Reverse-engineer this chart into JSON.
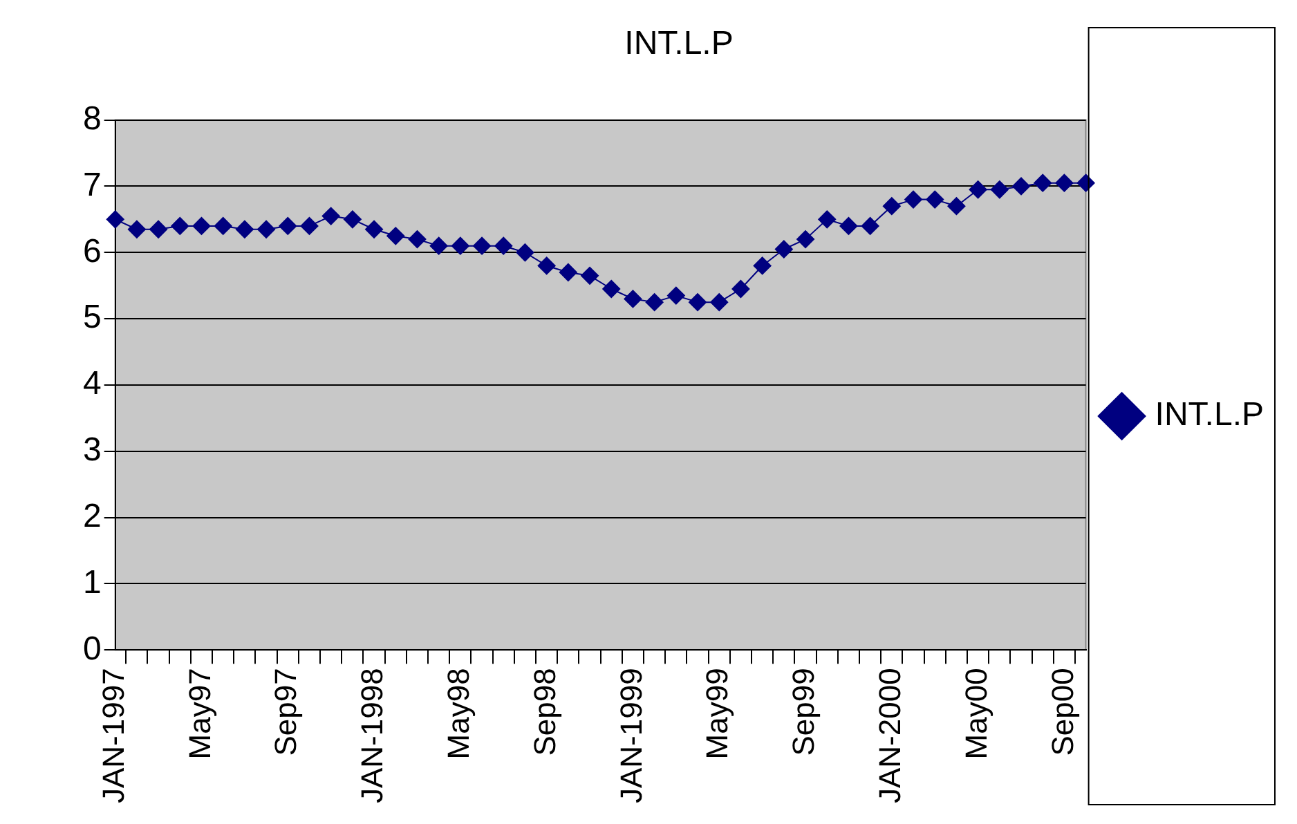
{
  "chart_data": {
    "type": "line",
    "title": "INT.L.P",
    "categories": [
      "JAN-1997",
      null,
      null,
      null,
      "May97",
      null,
      null,
      null,
      "Sep97",
      null,
      null,
      null,
      "JAN-1998",
      null,
      null,
      null,
      "May98",
      null,
      null,
      null,
      "Sep98",
      null,
      null,
      null,
      "JAN-1999",
      null,
      null,
      null,
      "May99",
      null,
      null,
      null,
      "Sep99",
      null,
      null,
      null,
      "JAN-2000",
      null,
      null,
      null,
      "May00",
      null,
      null,
      null,
      "Sep00",
      null
    ],
    "series": [
      {
        "name": "INT.L.P",
        "color": "#000080",
        "values": [
          6.5,
          6.35,
          6.35,
          6.4,
          6.4,
          6.4,
          6.35,
          6.35,
          6.4,
          6.4,
          6.55,
          6.5,
          6.35,
          6.25,
          6.2,
          6.1,
          6.1,
          6.1,
          6.1,
          6.0,
          5.8,
          5.7,
          5.65,
          5.45,
          5.3,
          5.25,
          5.35,
          5.25,
          5.25,
          5.45,
          5.8,
          6.05,
          6.2,
          6.5,
          6.4,
          6.4,
          6.7,
          6.8,
          6.8,
          6.7,
          6.95,
          6.95,
          7.0,
          7.05,
          7.05,
          7.05
        ]
      }
    ],
    "ylim": [
      0,
      8
    ],
    "yticks": [
      0,
      1,
      2,
      3,
      4,
      5,
      6,
      7,
      8
    ],
    "grid": "y",
    "legend": "right",
    "marker": "diamond",
    "line_style": "solid"
  }
}
